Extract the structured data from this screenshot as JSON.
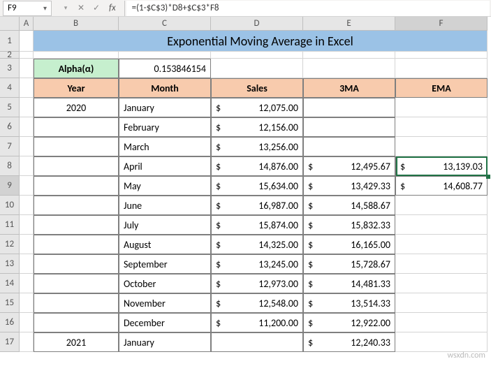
{
  "namebox": "F9",
  "formula": "=(1-$C$3)*D8+$C$3*F8",
  "columns": [
    "A",
    "B",
    "C",
    "D",
    "E",
    "F"
  ],
  "rows": [
    "1",
    "2",
    "3",
    "4",
    "5",
    "6",
    "7",
    "8",
    "9",
    "10",
    "11",
    "12",
    "13",
    "14",
    "15",
    "16",
    "17"
  ],
  "title": "Exponential Moving Average in Excel",
  "alpha_label": "Alpha(α)",
  "alpha_value": "0.153846154",
  "headers": {
    "b": "Year",
    "c": "Month",
    "d": "Sales",
    "e": "3MA",
    "f": "EMA"
  },
  "data": {
    "r5": {
      "year": "2020",
      "month": "January",
      "sales": "12,075.00",
      "ma": "",
      "ema": ""
    },
    "r6": {
      "year": "",
      "month": "February",
      "sales": "12,156.00",
      "ma": "",
      "ema": ""
    },
    "r7": {
      "year": "",
      "month": "March",
      "sales": "13,256.00",
      "ma": "",
      "ema": ""
    },
    "r8": {
      "year": "",
      "month": "April",
      "sales": "14,876.00",
      "ma": "12,495.67",
      "ema": "13,139.03"
    },
    "r9": {
      "year": "",
      "month": "May",
      "sales": "15,634.00",
      "ma": "13,429.33",
      "ema": "14,608.77"
    },
    "r10": {
      "year": "",
      "month": "June",
      "sales": "16,987.00",
      "ma": "14,588.67",
      "ema": ""
    },
    "r11": {
      "year": "",
      "month": "July",
      "sales": "15,874.00",
      "ma": "15,832.33",
      "ema": ""
    },
    "r12": {
      "year": "",
      "month": "August",
      "sales": "14,325.00",
      "ma": "16,165.00",
      "ema": ""
    },
    "r13": {
      "year": "",
      "month": "September",
      "sales": "13,245.00",
      "ma": "15,728.67",
      "ema": ""
    },
    "r14": {
      "year": "",
      "month": "October",
      "sales": "12,973.00",
      "ma": "14,481.33",
      "ema": ""
    },
    "r15": {
      "year": "",
      "month": "November",
      "sales": "12,548.00",
      "ma": "13,514.33",
      "ema": ""
    },
    "r16": {
      "year": "",
      "month": "December",
      "sales": "11,200.00",
      "ma": "12,922.00",
      "ema": ""
    },
    "r17": {
      "year": "2021",
      "month": "January",
      "sales": "",
      "ma": "12,240.33",
      "ema": ""
    }
  },
  "watermark": "wsxdn.com",
  "colors": {
    "title_bg": "#9bc2e6",
    "alpha_bg": "#c6efce",
    "header_bg": "#f8cbad",
    "selection": "#217346"
  }
}
